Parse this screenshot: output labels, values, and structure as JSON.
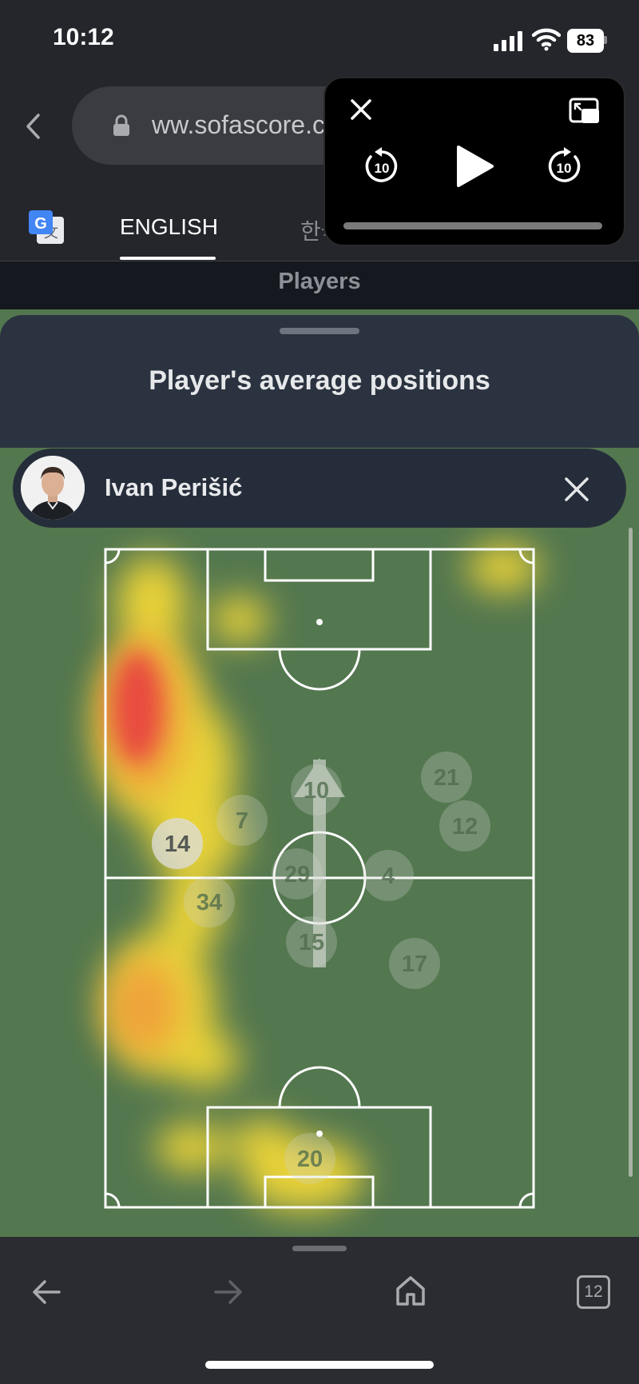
{
  "status_bar": {
    "time": "10:12",
    "battery": "83"
  },
  "browser": {
    "url": "ww.sofascore.c",
    "tabs_count": "12"
  },
  "translate_bar": {
    "lang_english": "ENGLISH",
    "lang_korean": "한국어"
  },
  "page": {
    "section_title": "Players"
  },
  "sheet": {
    "title": "Player's average positions",
    "player_name": "Ivan Perišić"
  },
  "pip": {
    "skip_back_seconds": "10",
    "skip_forward_seconds": "10"
  },
  "pitch": {
    "highlighted_player": "14",
    "player_markers": [
      "14",
      "7",
      "10",
      "21",
      "12",
      "29",
      "4",
      "34",
      "15",
      "17",
      "20"
    ]
  },
  "colors": {
    "pitch_green": "#53774f",
    "heat_red": "#e8473f",
    "heat_yellow": "#f2d838"
  }
}
